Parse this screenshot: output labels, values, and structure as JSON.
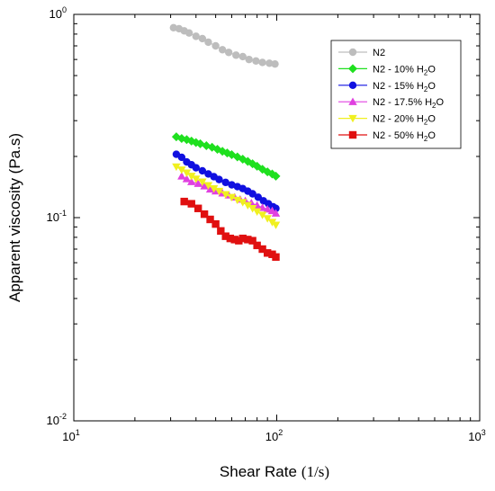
{
  "chart_data": {
    "type": "scatter",
    "xlabel": "Shear Rate",
    "xlabel_unit": "(1/s)",
    "ylabel": "Apparent viscosity (Pa.s)",
    "xscale": "log",
    "yscale": "log",
    "xlim": [
      10,
      1000
    ],
    "ylim": [
      0.01,
      1
    ],
    "x_ticks": [
      {
        "base": "10",
        "exp": "1"
      },
      {
        "base": "10",
        "exp": "2"
      },
      {
        "base": "10",
        "exp": "3"
      }
    ],
    "y_ticks": [
      {
        "base": "10",
        "exp": "-2"
      },
      {
        "base": "10",
        "exp": "-1"
      },
      {
        "base": "10",
        "exp": "0"
      }
    ],
    "legend_position": "top-right",
    "series": [
      {
        "name": "N2",
        "legend": {
          "main": "N2",
          "sub": "",
          "tail": ""
        },
        "color": "#bdbdbd",
        "marker": "circle",
        "points": [
          [
            31,
            0.86
          ],
          [
            33,
            0.85
          ],
          [
            35,
            0.83
          ],
          [
            37,
            0.81
          ],
          [
            40,
            0.78
          ],
          [
            43,
            0.76
          ],
          [
            46,
            0.73
          ],
          [
            50,
            0.7
          ],
          [
            54,
            0.67
          ],
          [
            58,
            0.65
          ],
          [
            63,
            0.63
          ],
          [
            68,
            0.62
          ],
          [
            73,
            0.6
          ],
          [
            79,
            0.59
          ],
          [
            85,
            0.58
          ],
          [
            92,
            0.575
          ],
          [
            98,
            0.57
          ]
        ]
      },
      {
        "name": "N2 - 10% H2O",
        "legend": {
          "main": "N2 - 10% H",
          "sub": "2",
          "tail": "O"
        },
        "color": "#1fe01f",
        "marker": "diamond",
        "points": [
          [
            32,
            0.25
          ],
          [
            34,
            0.245
          ],
          [
            36,
            0.242
          ],
          [
            38,
            0.238
          ],
          [
            40,
            0.234
          ],
          [
            42,
            0.231
          ],
          [
            45,
            0.226
          ],
          [
            48,
            0.222
          ],
          [
            51,
            0.217
          ],
          [
            54,
            0.212
          ],
          [
            57,
            0.208
          ],
          [
            60,
            0.204
          ],
          [
            64,
            0.199
          ],
          [
            68,
            0.194
          ],
          [
            72,
            0.189
          ],
          [
            76,
            0.184
          ],
          [
            80,
            0.179
          ],
          [
            85,
            0.173
          ],
          [
            90,
            0.168
          ],
          [
            95,
            0.164
          ],
          [
            99,
            0.16
          ]
        ]
      },
      {
        "name": "N2 - 15% H2O",
        "legend": {
          "main": "N2 - 15% H",
          "sub": "2",
          "tail": "O"
        },
        "color": "#1010e0",
        "marker": "circle",
        "points": [
          [
            32,
            0.205
          ],
          [
            34,
            0.198
          ],
          [
            36,
            0.188
          ],
          [
            38,
            0.182
          ],
          [
            40,
            0.176
          ],
          [
            43,
            0.17
          ],
          [
            46,
            0.164
          ],
          [
            49,
            0.159
          ],
          [
            52,
            0.154
          ],
          [
            56,
            0.149
          ],
          [
            60,
            0.145
          ],
          [
            64,
            0.142
          ],
          [
            68,
            0.139
          ],
          [
            72,
            0.135
          ],
          [
            76,
            0.131
          ],
          [
            81,
            0.126
          ],
          [
            86,
            0.121
          ],
          [
            91,
            0.117
          ],
          [
            96,
            0.113
          ],
          [
            99,
            0.111
          ]
        ]
      },
      {
        "name": "N2 - 17.5% H2O",
        "legend": {
          "main": "N2 - 17.5% H",
          "sub": "2",
          "tail": "O"
        },
        "color": "#e040e0",
        "marker": "triangle-up",
        "points": [
          [
            34,
            0.16
          ],
          [
            36,
            0.155
          ],
          [
            38,
            0.15
          ],
          [
            41,
            0.147
          ],
          [
            44,
            0.143
          ],
          [
            47,
            0.138
          ],
          [
            50,
            0.135
          ],
          [
            54,
            0.132
          ],
          [
            58,
            0.129
          ],
          [
            62,
            0.126
          ],
          [
            66,
            0.123
          ],
          [
            70,
            0.121
          ],
          [
            75,
            0.118
          ],
          [
            80,
            0.115
          ],
          [
            85,
            0.112
          ],
          [
            90,
            0.11
          ],
          [
            95,
            0.108
          ],
          [
            99,
            0.105
          ]
        ]
      },
      {
        "name": "N2 - 20% H2O",
        "legend": {
          "main": "N2 - 20% H",
          "sub": "2",
          "tail": "O"
        },
        "color": "#f0f020",
        "marker": "triangle-down",
        "points": [
          [
            32,
            0.178
          ],
          [
            34,
            0.172
          ],
          [
            36,
            0.166
          ],
          [
            38,
            0.16
          ],
          [
            40,
            0.155
          ],
          [
            43,
            0.15
          ],
          [
            46,
            0.144
          ],
          [
            49,
            0.139
          ],
          [
            52,
            0.135
          ],
          [
            56,
            0.13
          ],
          [
            60,
            0.126
          ],
          [
            64,
            0.122
          ],
          [
            68,
            0.119
          ],
          [
            72,
            0.115
          ],
          [
            76,
            0.111
          ],
          [
            80,
            0.107
          ],
          [
            85,
            0.103
          ],
          [
            90,
            0.099
          ],
          [
            95,
            0.095
          ],
          [
            99,
            0.092
          ]
        ]
      },
      {
        "name": "N2 - 50% H2O",
        "legend": {
          "main": "N2 - 50% H",
          "sub": "2",
          "tail": "O"
        },
        "color": "#e01010",
        "marker": "square",
        "points": [
          [
            35,
            0.12
          ],
          [
            38,
            0.117
          ],
          [
            41,
            0.111
          ],
          [
            44,
            0.104
          ],
          [
            47,
            0.098
          ],
          [
            50,
            0.093
          ],
          [
            53,
            0.086
          ],
          [
            56,
            0.081
          ],
          [
            59,
            0.079
          ],
          [
            62,
            0.078
          ],
          [
            65,
            0.077
          ],
          [
            68,
            0.079
          ],
          [
            72,
            0.078
          ],
          [
            76,
            0.077
          ],
          [
            80,
            0.073
          ],
          [
            85,
            0.07
          ],
          [
            90,
            0.067
          ],
          [
            95,
            0.066
          ],
          [
            99,
            0.064
          ]
        ]
      }
    ]
  }
}
